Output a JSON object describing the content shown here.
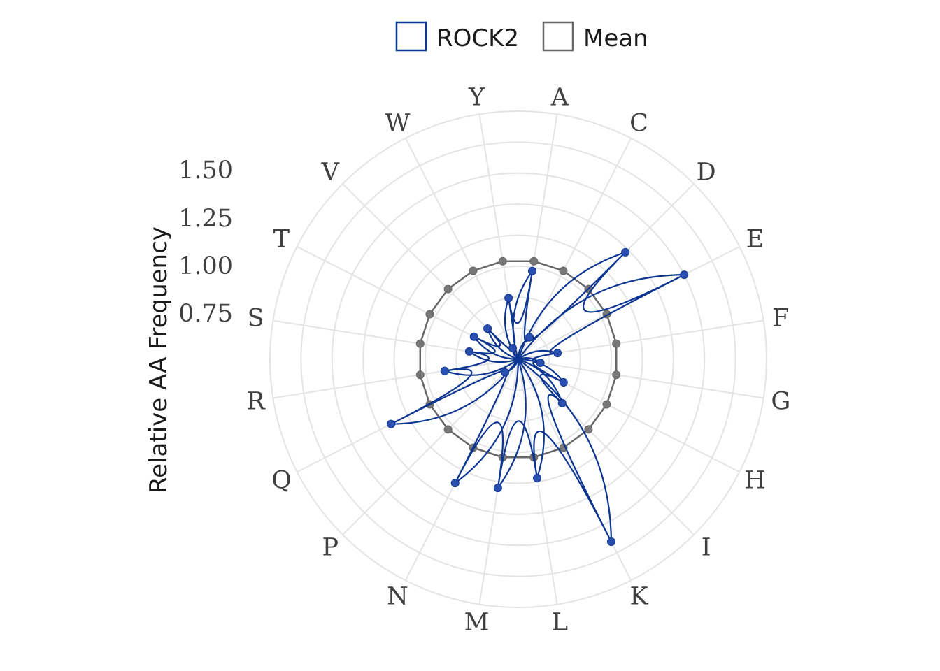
{
  "chart_data": {
    "type": "radar",
    "categories": [
      "A",
      "C",
      "D",
      "E",
      "F",
      "G",
      "H",
      "I",
      "K",
      "L",
      "M",
      "N",
      "P",
      "Q",
      "R",
      "S",
      "T",
      "V",
      "W",
      "Y"
    ],
    "series": [
      {
        "name": "ROCK2",
        "color": "#0d3692",
        "values": [
          0.72,
          0.2,
          1.22,
          1.5,
          0.32,
          0.18,
          0.41,
          0.5,
          1.65,
          0.97,
          1.05,
          1.12,
          0.15,
          1.15,
          0.6,
          0.4,
          0.4,
          0.35,
          0.1,
          0.5
        ]
      },
      {
        "name": "Mean",
        "color": "#676767",
        "values": [
          0.8,
          0.8,
          0.8,
          0.8,
          0.8,
          0.8,
          0.8,
          0.8,
          0.8,
          0.8,
          0.8,
          0.8,
          0.8,
          0.8,
          0.8,
          0.8,
          0.8,
          0.8,
          0.8,
          0.8
        ]
      }
    ],
    "radial_ticks": [
      "0.75",
      "1.00",
      "1.25",
      "1.50"
    ],
    "radial_tick_values": [
      0.75,
      1.0,
      1.25,
      1.5
    ],
    "rmax": 2.0,
    "ylabel": "Relative AA Frequency",
    "legend_position": "top",
    "grid": true
  }
}
